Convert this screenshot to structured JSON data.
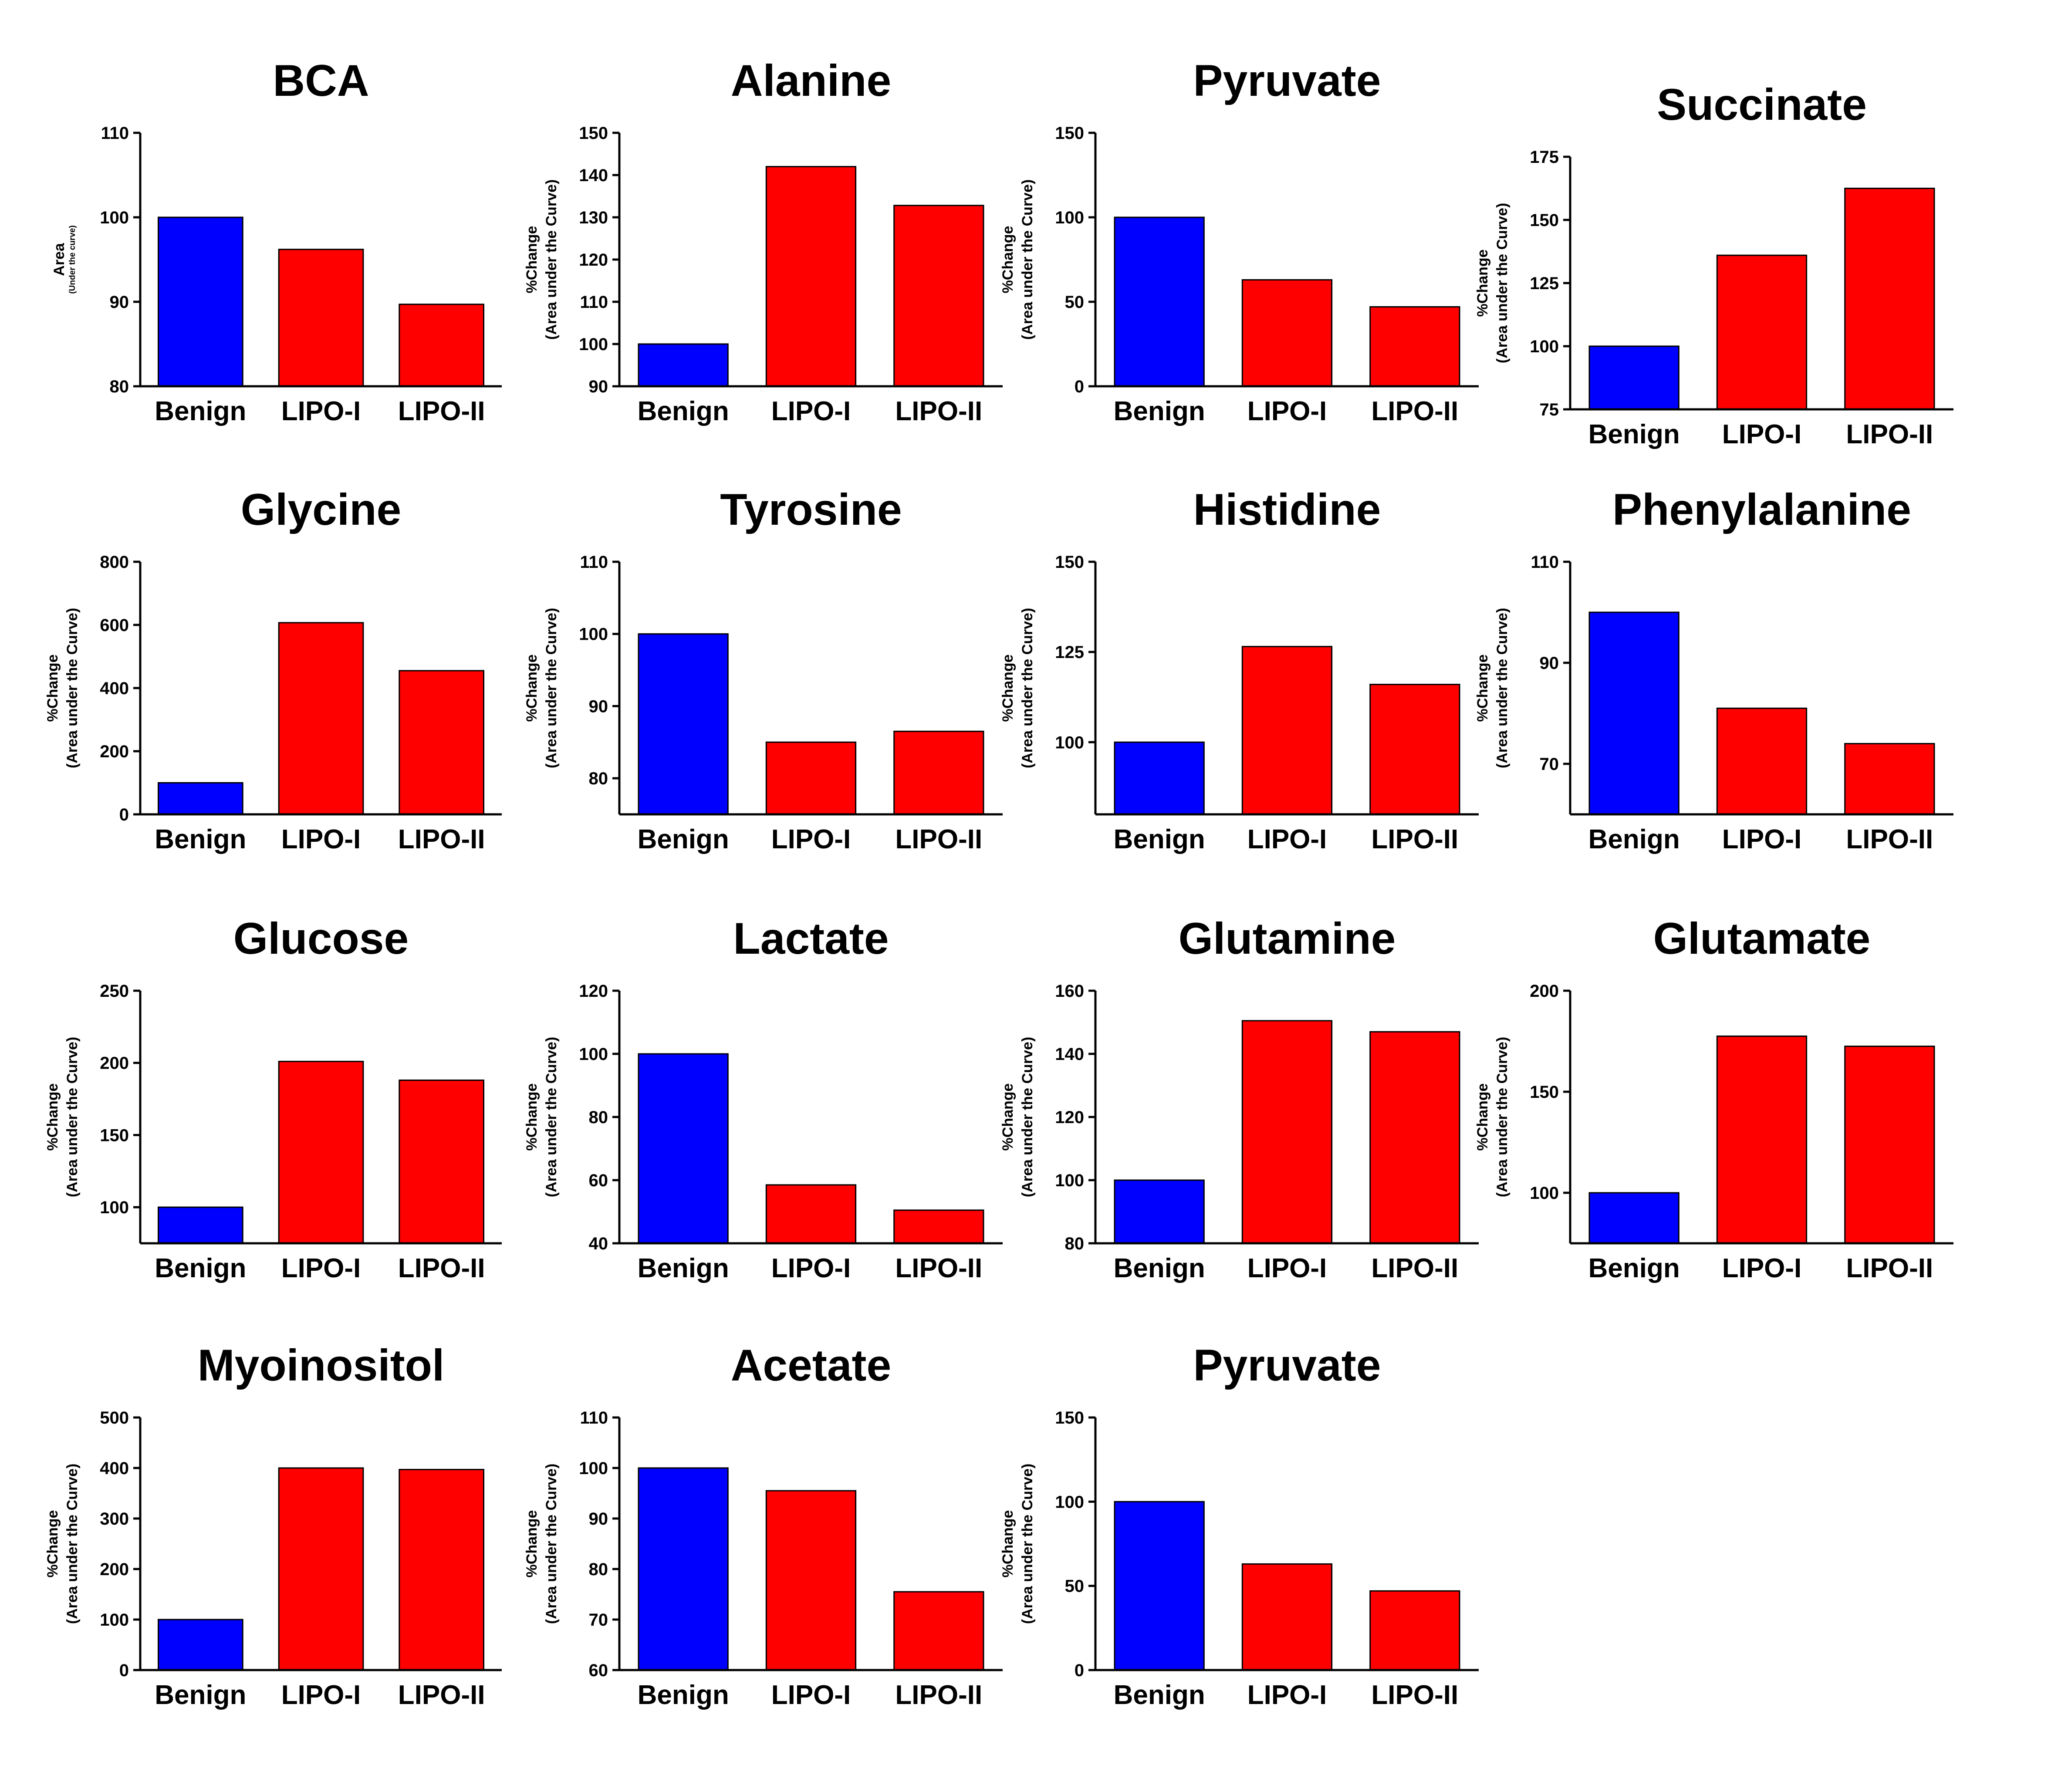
{
  "colors": {
    "benign": "#0000ff",
    "lipo": "#ff0000",
    "axis": "#000000"
  },
  "chart_data": [
    {
      "type": "bar",
      "title": "BCA",
      "categories": [
        "Benign",
        "LIPO-I",
        "LIPO-II"
      ],
      "values": [
        100,
        96.2,
        89.7
      ],
      "ylim": [
        80,
        110
      ],
      "yticks": [
        "80",
        "90",
        "100",
        "110"
      ],
      "ylabel": "Area",
      "ylabel2": "(Under the curve)"
    },
    {
      "type": "bar",
      "title": "Alanine",
      "categories": [
        "Benign",
        "LIPO-I",
        "LIPO-II"
      ],
      "values": [
        100,
        142,
        132.8
      ],
      "ylim": [
        90,
        150
      ],
      "yticks": [
        "90",
        "100",
        "110",
        "120",
        "130",
        "140",
        "150"
      ],
      "ylabel": "%Change",
      "ylabel2": "(Area under the Curve)"
    },
    {
      "type": "bar",
      "title": "Pyruvate",
      "categories": [
        "Benign",
        "LIPO-I",
        "LIPO-II"
      ],
      "values": [
        100,
        63,
        47
      ],
      "ylim": [
        0,
        150
      ],
      "yticks": [
        "0",
        "50",
        "100",
        "150"
      ],
      "ylabel": "%Change",
      "ylabel2": "(Area under the Curve)"
    },
    {
      "type": "bar",
      "title": "Succinate",
      "categories": [
        "Benign",
        "LIPO-I",
        "LIPO-II"
      ],
      "values": [
        100,
        136,
        162.5
      ],
      "ylim": [
        75,
        175
      ],
      "yticks": [
        "75",
        "100",
        "125",
        "150",
        "175"
      ],
      "ylabel": "%Change",
      "ylabel2": "(Area under the Curve)"
    },
    {
      "type": "bar",
      "title": "Glycine",
      "categories": [
        "Benign",
        "LIPO-I",
        "LIPO-II"
      ],
      "values": [
        100,
        607,
        455
      ],
      "ylim": [
        0,
        800
      ],
      "yticks": [
        "0",
        "200",
        "400",
        "600",
        "800"
      ],
      "ylabel": "%Change",
      "ylabel2": "(Area under the Curve)"
    },
    {
      "type": "bar",
      "title": "Tyrosine",
      "categories": [
        "Benign",
        "LIPO-I",
        "LIPO-II"
      ],
      "values": [
        100,
        85,
        86.5
      ],
      "ylim": [
        75,
        110
      ],
      "yticks": [
        "80",
        "90",
        "100",
        "110"
      ],
      "ylabel": "%Change",
      "ylabel2": "(Area under the Curve)"
    },
    {
      "type": "bar",
      "title": "Histidine",
      "categories": [
        "Benign",
        "LIPO-I",
        "LIPO-II"
      ],
      "values": [
        100,
        126.5,
        116
      ],
      "ylim": [
        80,
        150
      ],
      "yticks": [
        "100",
        "125",
        "150"
      ],
      "ylabel": "%Change",
      "ylabel2": "(Area under the Curve)"
    },
    {
      "type": "bar",
      "title": "Phenylalanine",
      "categories": [
        "Benign",
        "LIPO-I",
        "LIPO-II"
      ],
      "values": [
        100,
        81,
        74
      ],
      "ylim": [
        60,
        110
      ],
      "yticks": [
        "70",
        "90",
        "110"
      ],
      "ylabel": "%Change",
      "ylabel2": "(Area under the Curve)"
    },
    {
      "type": "bar",
      "title": "Glucose",
      "categories": [
        "Benign",
        "LIPO-I",
        "LIPO-II"
      ],
      "values": [
        100,
        201,
        188
      ],
      "ylim": [
        75,
        250
      ],
      "yticks": [
        "100",
        "150",
        "200",
        "250"
      ],
      "ylabel": "%Change",
      "ylabel2": "(Area under the Curve)"
    },
    {
      "type": "bar",
      "title": "Lactate",
      "categories": [
        "Benign",
        "LIPO-I",
        "LIPO-II"
      ],
      "values": [
        100,
        58.5,
        50.5
      ],
      "ylim": [
        40,
        120
      ],
      "yticks": [
        "40",
        "60",
        "80",
        "100",
        "120"
      ],
      "ylabel": "%Change",
      "ylabel2": "(Area under the Curve)"
    },
    {
      "type": "bar",
      "title": "Glutamine",
      "categories": [
        "Benign",
        "LIPO-I",
        "LIPO-II"
      ],
      "values": [
        100,
        150.5,
        147
      ],
      "ylim": [
        80,
        160
      ],
      "yticks": [
        "80",
        "100",
        "120",
        "140",
        "160"
      ],
      "ylabel": "%Change",
      "ylabel2": "(Area under the Curve)"
    },
    {
      "type": "bar",
      "title": "Glutamate",
      "categories": [
        "Benign",
        "LIPO-I",
        "LIPO-II"
      ],
      "values": [
        100,
        177.5,
        172.5
      ],
      "ylim": [
        75,
        200
      ],
      "yticks": [
        "100",
        "150",
        "200"
      ],
      "ylabel": "%Change",
      "ylabel2": "(Area under the Curve)"
    },
    {
      "type": "bar",
      "title": "Myoinositol",
      "categories": [
        "Benign",
        "LIPO-I",
        "LIPO-II"
      ],
      "values": [
        100,
        400,
        397
      ],
      "ylim": [
        0,
        500
      ],
      "yticks": [
        "0",
        "100",
        "200",
        "300",
        "400",
        "500"
      ],
      "ylabel": "%Change",
      "ylabel2": "(Area under the Curve)"
    },
    {
      "type": "bar",
      "title": "Acetate",
      "categories": [
        "Benign",
        "LIPO-I",
        "LIPO-II"
      ],
      "values": [
        100,
        95.5,
        75.5
      ],
      "ylim": [
        60,
        110
      ],
      "yticks": [
        "60",
        "70",
        "80",
        "90",
        "100",
        "110"
      ],
      "ylabel": "%Change",
      "ylabel2": "(Area under the Curve)"
    },
    {
      "type": "bar",
      "title": "Pyruvate",
      "categories": [
        "Benign",
        "LIPO-I",
        "LIPO-II"
      ],
      "values": [
        100,
        63,
        47
      ],
      "ylim": [
        0,
        150
      ],
      "yticks": [
        "0",
        "50",
        "100",
        "150"
      ],
      "ylabel": "%Change",
      "ylabel2": "(Area under the Curve)"
    }
  ]
}
